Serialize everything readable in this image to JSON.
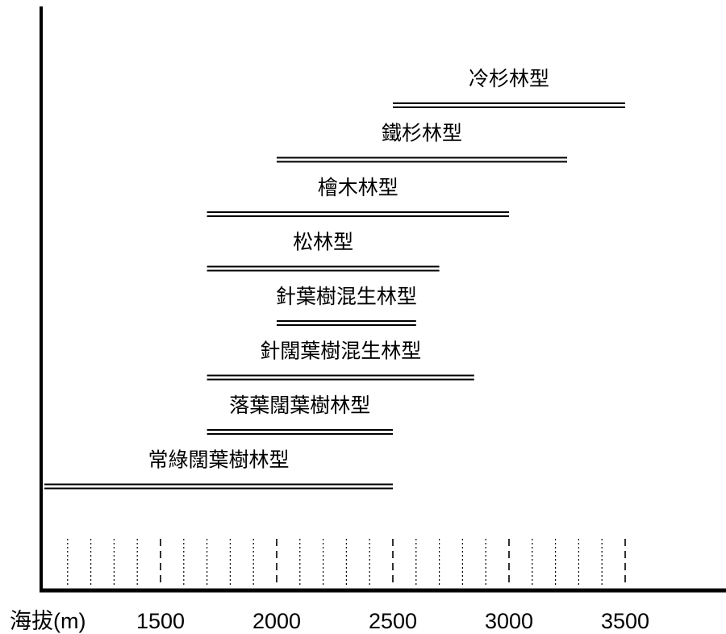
{
  "chart_data": {
    "type": "range-bar",
    "xlabel": "海拔(m)",
    "x_ticks": [
      1500,
      2000,
      2500,
      3000,
      3500
    ],
    "xlim": [
      1000,
      3500
    ],
    "series": [
      {
        "name": "冷杉林型",
        "start": 2500,
        "end": 3500
      },
      {
        "name": "鐵杉林型",
        "start": 2000,
        "end": 3250
      },
      {
        "name": "檜木林型",
        "start": 1700,
        "end": 3000
      },
      {
        "name": "松林型",
        "start": 1700,
        "end": 2700
      },
      {
        "name": "針葉樹混生林型",
        "start": 2000,
        "end": 2600
      },
      {
        "name": "針闊葉樹混生林型",
        "start": 1700,
        "end": 2850
      },
      {
        "name": "落葉闊葉樹林型",
        "start": 1700,
        "end": 2500
      },
      {
        "name": "常綠闊葉樹林型",
        "start": 1000,
        "end": 2500
      }
    ]
  }
}
